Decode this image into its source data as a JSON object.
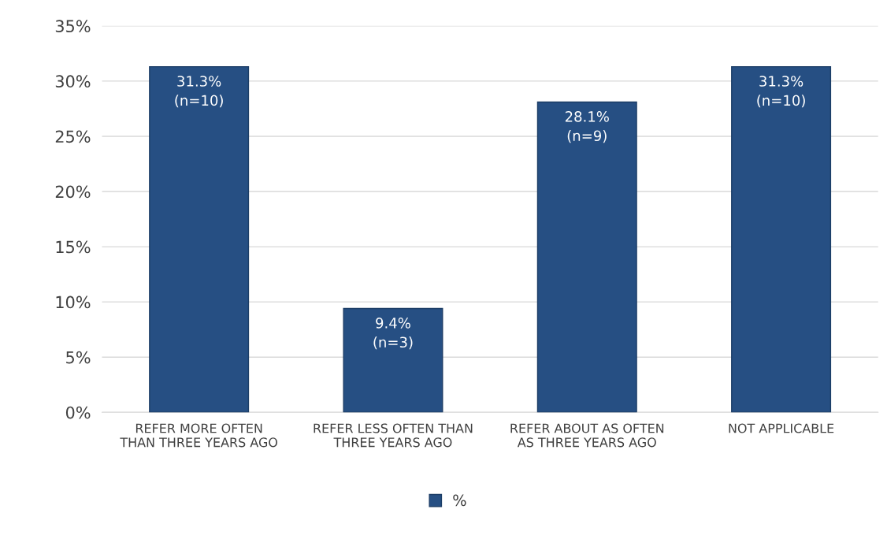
{
  "chart_data": {
    "type": "bar",
    "categories": [
      "REFER MORE OFTEN\nTHAN THREE YEARS AGO",
      "REFER LESS OFTEN THAN\nTHREE YEARS AGO",
      "REFER ABOUT AS OFTEN\nAS THREE YEARS AGO",
      "NOT APPLICABLE"
    ],
    "series": [
      {
        "name": "%",
        "color": "#264f83",
        "values": [
          31.3,
          9.4,
          28.1,
          31.3
        ],
        "value_labels": [
          "31.3%\n(n=10)",
          "9.4%\n(n=3)",
          "28.1%\n(n=9)",
          "31.3%\n(n=10)"
        ]
      }
    ],
    "ylim": [
      0,
      35
    ],
    "yticks": [
      {
        "value": 0,
        "label": "0%"
      },
      {
        "value": 5,
        "label": "5%"
      },
      {
        "value": 10,
        "label": "10%"
      },
      {
        "value": 15,
        "label": "15%"
      },
      {
        "value": 20,
        "label": "20%"
      },
      {
        "value": 25,
        "label": "25%"
      },
      {
        "value": 30,
        "label": "30%"
      },
      {
        "value": 35,
        "label": "35%"
      }
    ],
    "grid": "y",
    "legend": "bottom"
  }
}
